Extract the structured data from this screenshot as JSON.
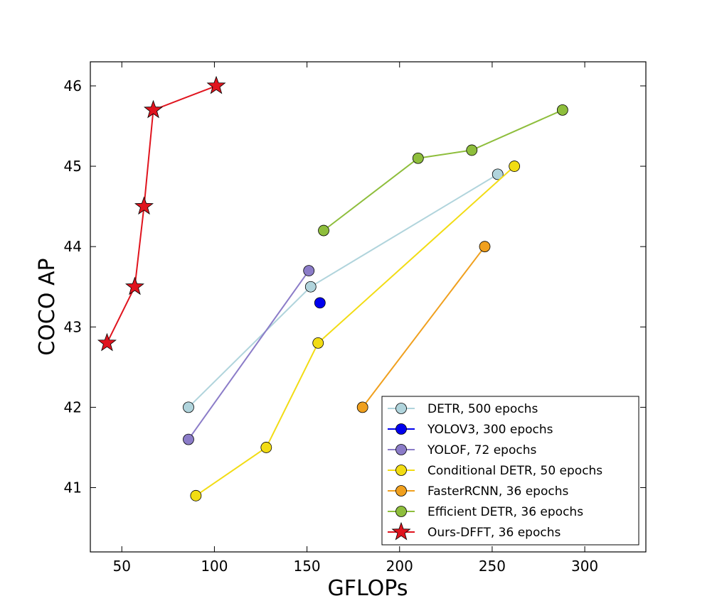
{
  "chart_data": {
    "type": "line",
    "title": "",
    "xlabel": "GFLOPs",
    "ylabel": "COCO AP",
    "xlim": [
      33,
      333
    ],
    "ylim": [
      40.2,
      46.3
    ],
    "xticks": [
      50,
      100,
      150,
      200,
      250,
      300
    ],
    "yticks": [
      41,
      42,
      43,
      44,
      45,
      46
    ],
    "xtick_labels": [
      "50",
      "100",
      "150",
      "200",
      "250",
      "300"
    ],
    "ytick_labels": [
      "41",
      "42",
      "43",
      "44",
      "45",
      "46"
    ],
    "grid": false,
    "legend_position": "lower-right",
    "series": [
      {
        "name": "DETR, 500 epochs",
        "color": "#b0d4dc",
        "marker": "circle",
        "x": [
          86,
          152,
          253
        ],
        "y": [
          42.0,
          43.5,
          44.9
        ]
      },
      {
        "name": "YOLOV3, 300 epochs",
        "color": "#0000ee",
        "marker": "circle",
        "x": [
          157
        ],
        "y": [
          43.3
        ]
      },
      {
        "name": "YOLOF, 72 epochs",
        "color": "#8b7cc8",
        "marker": "circle",
        "x": [
          86,
          151
        ],
        "y": [
          41.6,
          43.7
        ]
      },
      {
        "name": "Conditional DETR, 50 epochs",
        "color": "#f2dc14",
        "marker": "circle",
        "x": [
          90,
          128,
          156,
          262
        ],
        "y": [
          40.9,
          41.5,
          42.8,
          45.0
        ]
      },
      {
        "name": "FasterRCNN, 36 epochs",
        "color": "#f0a01e",
        "marker": "circle",
        "x": [
          180,
          246
        ],
        "y": [
          42.0,
          44.0
        ]
      },
      {
        "name": "Efficient DETR, 36 epochs",
        "color": "#8ebe3c",
        "marker": "circle",
        "x": [
          159,
          210,
          239,
          288
        ],
        "y": [
          44.2,
          45.1,
          45.2,
          45.7
        ]
      },
      {
        "name": "Ours-DFFT, 36 epochs",
        "color": "#e0141e",
        "marker": "star",
        "x": [
          42,
          57,
          62,
          67,
          101
        ],
        "y": [
          42.8,
          43.5,
          44.5,
          45.7,
          46.0
        ]
      }
    ]
  }
}
